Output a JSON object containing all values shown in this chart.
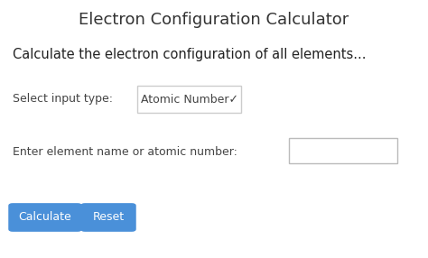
{
  "title": "Electron Configuration Calculator",
  "subtitle": "Calculate the electron configuration of all elements...",
  "label_input_type": "Select input type:",
  "dropdown_text": "Atomic Number✓",
  "label_element": "Enter element name or atomic number:",
  "btn1_text": "Calculate",
  "btn2_text": "Reset",
  "bg_color": "#ffffff",
  "title_color": "#333333",
  "subtitle_color": "#222222",
  "label_color": "#444444",
  "box_border_color": "#cccccc",
  "input_border_color": "#bbbbbb",
  "input_fill_color": "#ffffff",
  "btn_color": "#4a90d9",
  "btn_text_color": "#ffffff",
  "title_fontsize": 13,
  "subtitle_fontsize": 10.5,
  "label_fontsize": 9,
  "btn_fontsize": 9,
  "dropdown_fontsize": 9,
  "fig_width": 4.74,
  "fig_height": 2.86,
  "dpi": 100
}
